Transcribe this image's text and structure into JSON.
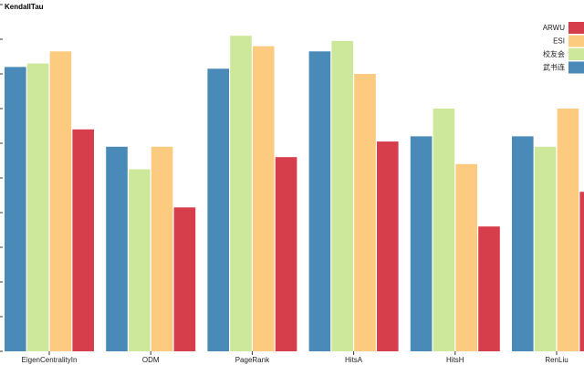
{
  "chart_data": {
    "type": "bar",
    "ylabel": "KendallTau",
    "ylim": [
      0,
      1.0
    ],
    "grid": false,
    "legend_position": "top-right",
    "categories": [
      "EigenCentralityIn",
      "ODM",
      "PageRank",
      "HitsA",
      "HitsH",
      "RenLiu"
    ],
    "series": [
      {
        "name": "武书连",
        "color": "#4a8ab8",
        "values": [
          0.82,
          0.59,
          0.815,
          0.865,
          0.62,
          0.62
        ]
      },
      {
        "name": "校友会",
        "color": "#cde89a",
        "values": [
          0.83,
          0.525,
          0.91,
          0.895,
          0.7,
          0.59
        ]
      },
      {
        "name": "ESI",
        "color": "#fdcb7f",
        "values": [
          0.865,
          0.59,
          0.88,
          0.8,
          0.54,
          0.7
        ]
      },
      {
        "name": "ARWU",
        "color": "#d73e4c",
        "values": [
          0.64,
          0.415,
          0.56,
          0.605,
          0.36,
          0.46
        ]
      }
    ],
    "legend_order": [
      "ARWU",
      "ESI",
      "校友会",
      "武书连"
    ]
  }
}
